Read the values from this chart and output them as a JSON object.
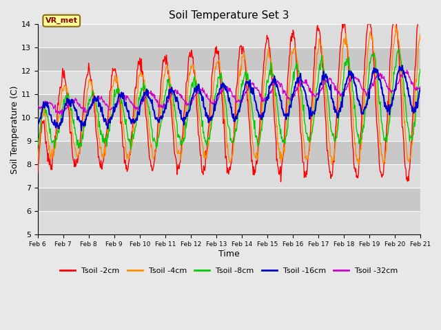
{
  "title": "Soil Temperature Set 3",
  "xlabel": "Time",
  "ylabel": "Soil Temperature (C)",
  "ylim": [
    5.0,
    14.0
  ],
  "yticks": [
    5.0,
    6.0,
    7.0,
    8.0,
    9.0,
    10.0,
    11.0,
    12.0,
    13.0,
    14.0
  ],
  "series_colors": [
    "#ff0000",
    "#ff8c00",
    "#00cc00",
    "#0000cc",
    "#cc00cc"
  ],
  "series_labels": [
    "Tsoil -2cm",
    "Tsoil -4cm",
    "Tsoil -8cm",
    "Tsoil -16cm",
    "Tsoil -32cm"
  ],
  "annotation_text": "VR_met",
  "background_color": "#e8e8e8",
  "plot_bg_color": "#d4d4d4",
  "grid_color": "#c0c0c0",
  "n_days": 15,
  "samples_per_day": 48,
  "start_day": 6
}
